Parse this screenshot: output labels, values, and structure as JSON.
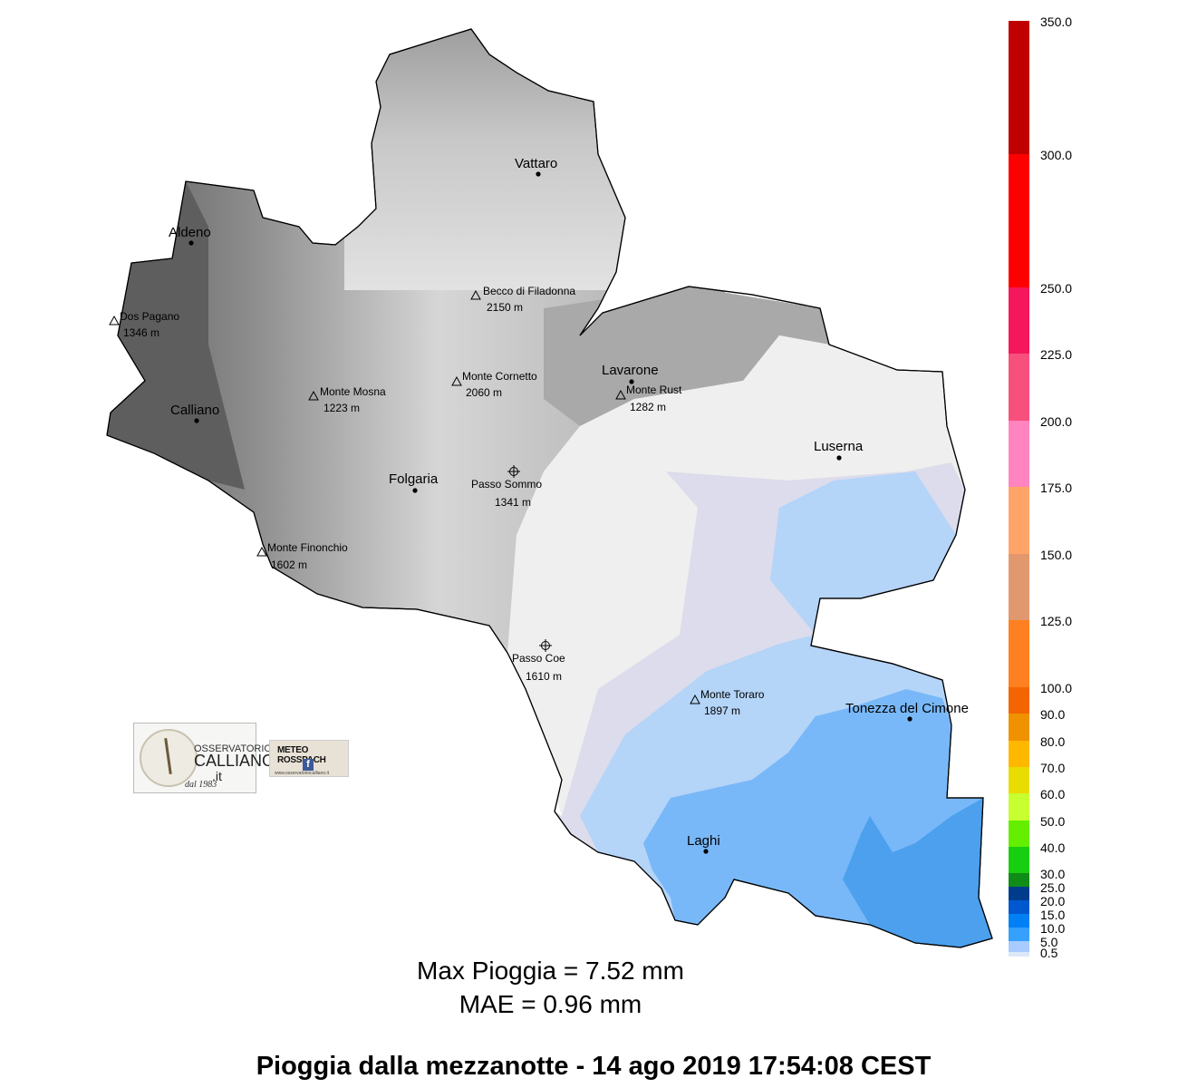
{
  "map": {
    "places": [
      {
        "name": "Vattaro",
        "kind": "town"
      },
      {
        "name": "Aldeno",
        "kind": "town"
      },
      {
        "name": "Calliano",
        "kind": "town"
      },
      {
        "name": "Folgaria",
        "kind": "town"
      },
      {
        "name": "Lavarone",
        "kind": "town"
      },
      {
        "name": "Luserna",
        "kind": "town"
      },
      {
        "name": "Tonezza del Cimone",
        "kind": "town"
      },
      {
        "name": "Laghi",
        "kind": "town"
      }
    ],
    "peaks": [
      {
        "name": "Becco di Filadonna",
        "elevation": "2150 m",
        "kind": "peak"
      },
      {
        "name": "Dos Pagano",
        "elevation": "1346 m",
        "kind": "peak"
      },
      {
        "name": "Monte Cornetto",
        "elevation": "2060 m",
        "kind": "peak"
      },
      {
        "name": "Monte Mosna",
        "elevation": "1223 m",
        "kind": "peak"
      },
      {
        "name": "Monte Rust",
        "elevation": "1282 m",
        "kind": "peak"
      },
      {
        "name": "Monte Finonchio",
        "elevation": "1602 m",
        "kind": "peak"
      },
      {
        "name": "Monte Toraro",
        "elevation": "1897 m",
        "kind": "peak"
      },
      {
        "name": "Passo Sommo",
        "elevation": "1341 m",
        "kind": "pass"
      },
      {
        "name": "Passo Coe",
        "elevation": "1610 m",
        "kind": "pass"
      }
    ],
    "rain_colors": {
      "none": "#efefef",
      "lightest": "#dcdcec",
      "light": "#b4d4f8",
      "medium": "#78b8f8",
      "strong": "#4ca0ee"
    }
  },
  "legend": {
    "unit": "mm",
    "ticks": [
      "350.0",
      "300.0",
      "250.0",
      "225.0",
      "200.0",
      "175.0",
      "150.0",
      "125.0",
      "100.0",
      "90.0",
      "80.0",
      "70.0",
      "60.0",
      "50.0",
      "40.0",
      "30.0",
      "25.0",
      "20.0",
      "15.0",
      "10.0",
      "5.0",
      "0.5"
    ],
    "colors": [
      "#c00000",
      "#ff0000",
      "#f4175c",
      "#f7507c",
      "#ff84c0",
      "#ffa468",
      "#e2986f",
      "#ff8020",
      "#f26500",
      "#f09200",
      "#ffb800",
      "#e8dc00",
      "#c8ff30",
      "#64ee00",
      "#18ce10",
      "#108c18",
      "#003c8c",
      "#0058d0",
      "#0080f4",
      "#36a0ff",
      "#a8ccff",
      "#dce8f8"
    ]
  },
  "stats": {
    "max_rain": "Max Pioggia = 7.52 mm",
    "mae": "MAE = 0.96 mm"
  },
  "footer": {
    "title": "Pioggia dalla mezzanotte  -  14 ago 2019 17:54:08  CEST"
  },
  "logos": {
    "observatory": {
      "line1": "OSSERVATORIO",
      "line2": "CALLIANO",
      "line3": ".it",
      "line4": "dal 1983"
    },
    "meteo": {
      "title": "METEO ROSSPACH",
      "fb": "f",
      "url": "www.osservatoriocalliano.it"
    }
  }
}
